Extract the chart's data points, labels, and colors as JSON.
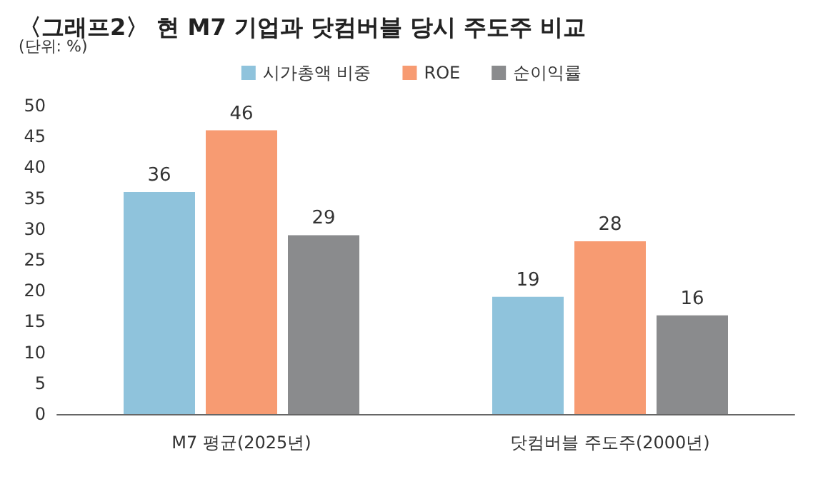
{
  "chart_data": {
    "type": "bar",
    "title": "〈그래프2〉 현 M7 기업과 닷컴버블 당시 주도주 비교",
    "subtitle": "(단위: %)",
    "categories": [
      "M7 평균(2025년)",
      "닷컴버블 주도주(2000년)"
    ],
    "series": [
      {
        "name": "시가총액 비중",
        "color": "#8fc3dc",
        "values": [
          36,
          19
        ]
      },
      {
        "name": "ROE",
        "color": "#f79b72",
        "values": [
          46,
          28
        ]
      },
      {
        "name": "순이익률",
        "color": "#8a8b8d",
        "values": [
          29,
          16
        ]
      }
    ],
    "ylim": [
      0,
      50
    ],
    "yticks": [
      0,
      5,
      10,
      15,
      20,
      25,
      30,
      35,
      40,
      45,
      50
    ],
    "grid": false,
    "legend": "top",
    "data_labels": true
  }
}
